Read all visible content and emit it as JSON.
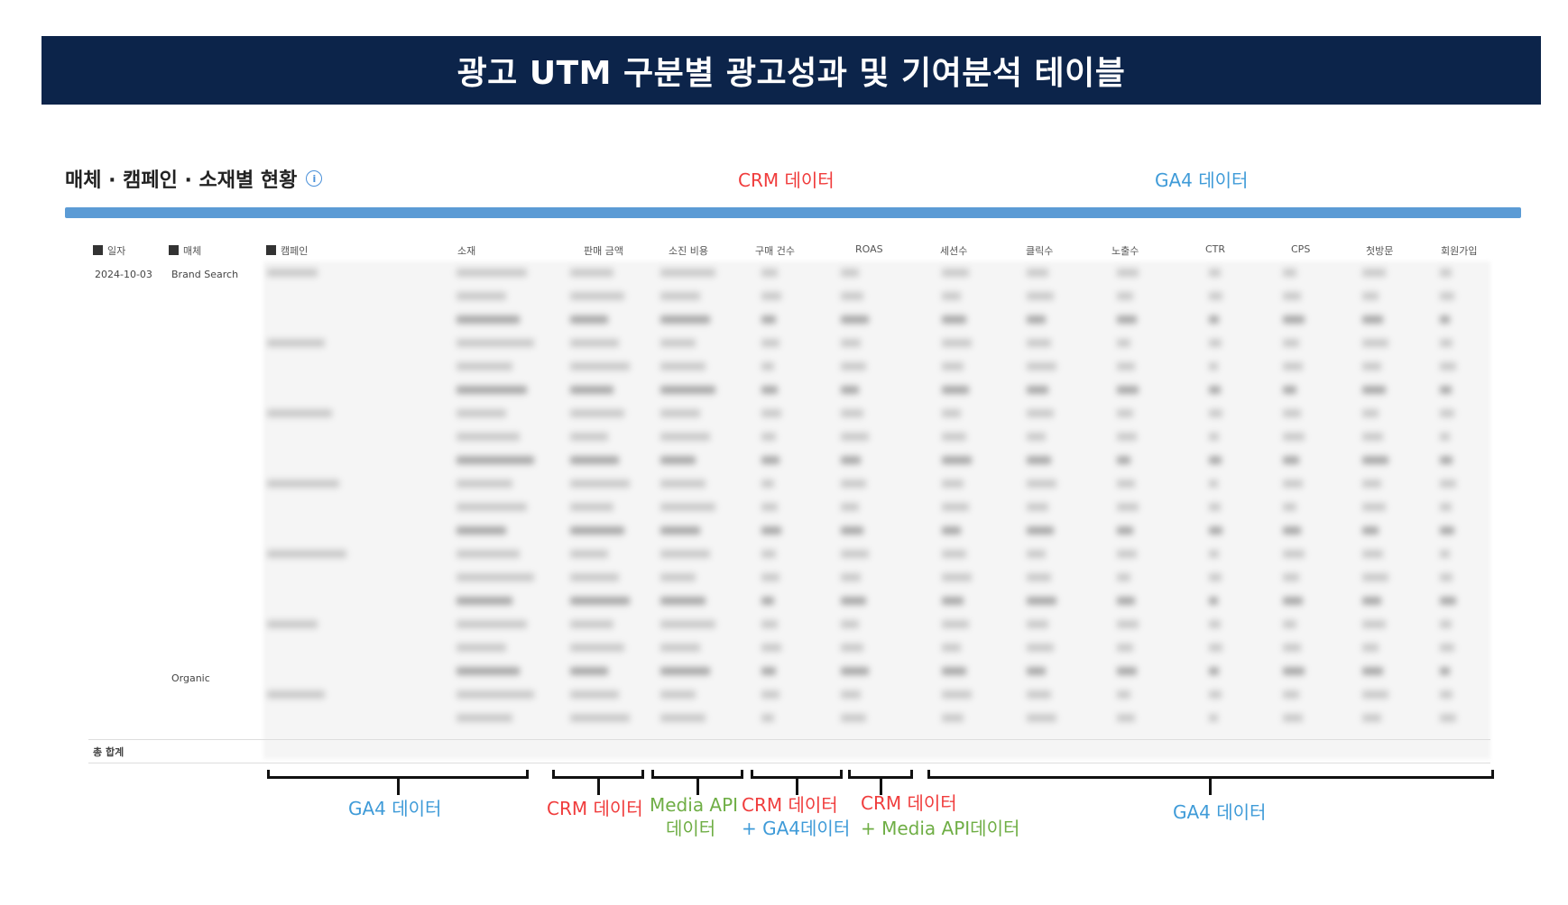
{
  "banner": {
    "title": "광고 UTM 구분별 광고성과 및 기여분석 테이블"
  },
  "section": {
    "title": "매체 · 캠페인 · 소재별 현황",
    "info_icon": "info-icon"
  },
  "top_labels": {
    "crm": "CRM 데이터",
    "ga4": "GA4 데이터"
  },
  "table": {
    "headers": [
      "일자",
      "매체",
      "캠페인",
      "소재",
      "판매 금액",
      "소진 비용",
      "구매 건수",
      "ROAS",
      "세션수",
      "클릭수",
      "노출수",
      "CTR",
      "CPS",
      "첫방문",
      "회원가입"
    ],
    "date": "2024-10-03",
    "media_1": "Brand Search",
    "media_2": "Organic",
    "total_label": "총 합계"
  },
  "bottom_labels": {
    "ga4_left": "GA4 데이터",
    "crm_1": "CRM 데이터",
    "media_api_1": "Media API",
    "media_api_2": "데이터",
    "crm_ga4_1": "CRM 데이터",
    "crm_ga4_2": "+ GA4데이터",
    "crm_media_1": "CRM 데이터",
    "crm_media_2": "+ Media API데이터",
    "ga4_right": "GA4 데이터"
  },
  "colors": {
    "banner": "#0c244a",
    "crm": "#f03c3c",
    "ga4": "#3f9bd8",
    "media_api": "#6fae45",
    "bar": "#5b9bd5"
  }
}
